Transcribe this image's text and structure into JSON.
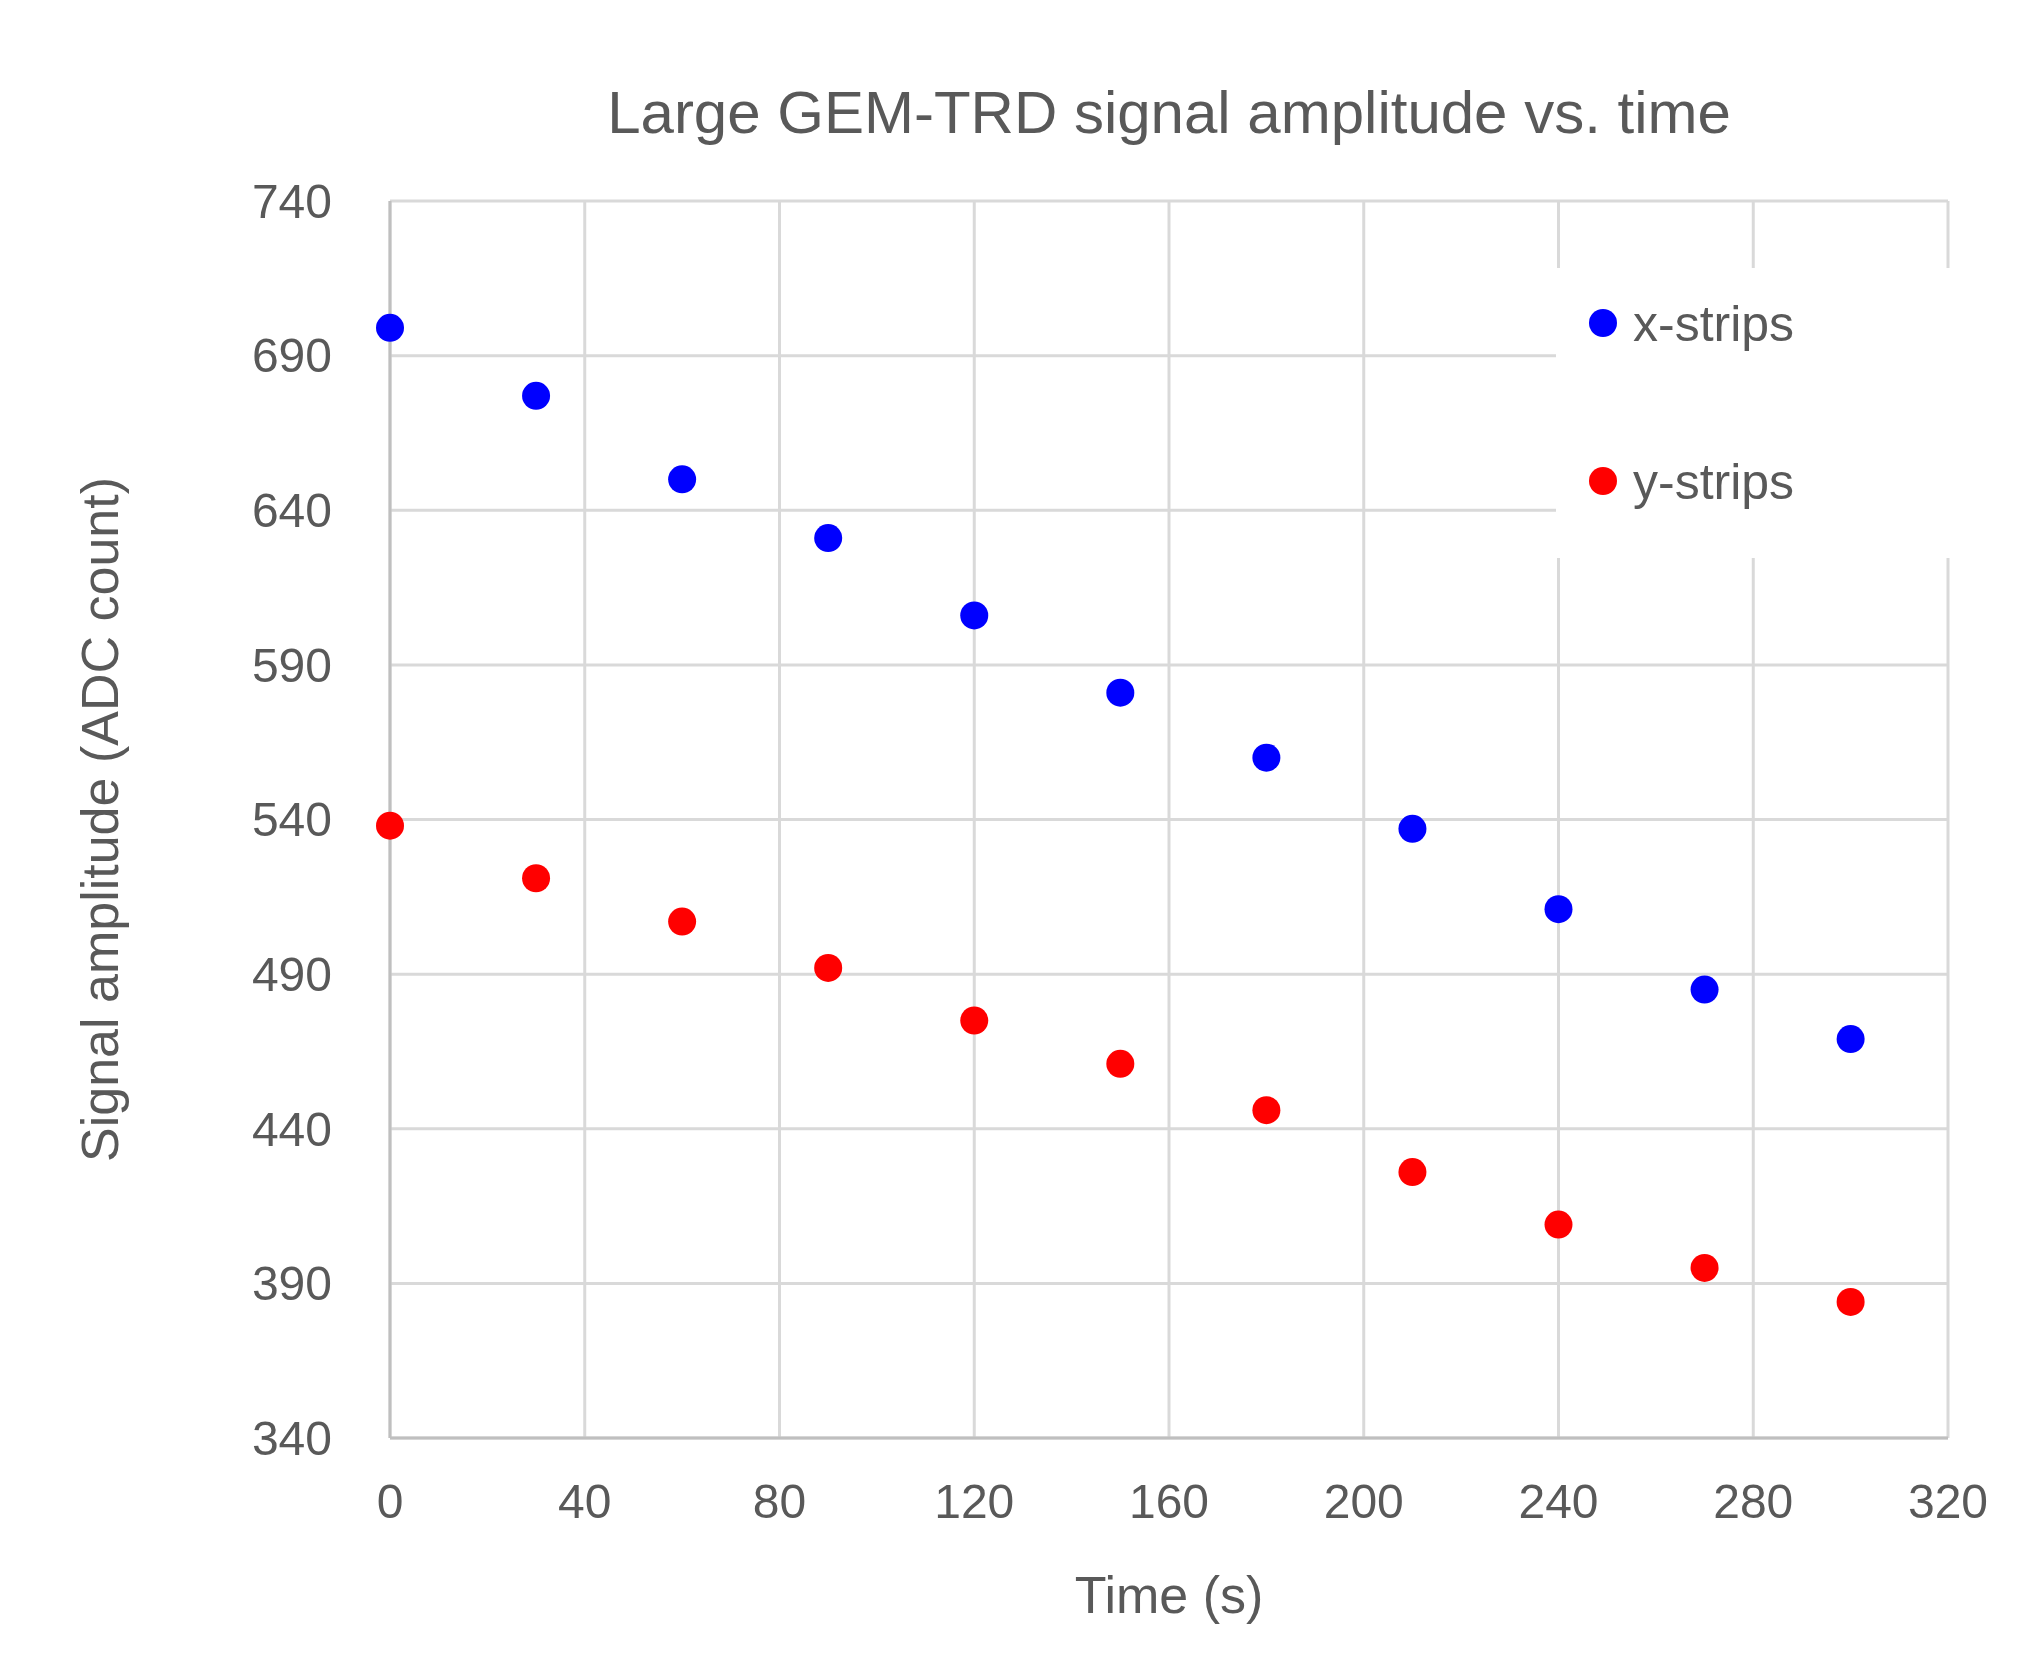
{
  "chart_data": {
    "type": "scatter",
    "title": "Large GEM-TRD signal amplitude vs. time",
    "xlabel": "Time (s)",
    "ylabel": "Signal amplitude (ADC count)",
    "x": [
      0,
      30,
      60,
      90,
      120,
      150,
      180,
      210,
      240,
      270,
      300
    ],
    "series": [
      {
        "name": "x-strips",
        "color": "#0000ff",
        "values": [
          699,
          677,
          650,
          631,
          606,
          581,
          560,
          537,
          511,
          485,
          469
        ]
      },
      {
        "name": "y-strips",
        "color": "#ff0000",
        "values": [
          538,
          521,
          507,
          492,
          475,
          461,
          446,
          426,
          409,
          395,
          384
        ]
      }
    ],
    "xlim": [
      0,
      320
    ],
    "xticks": [
      0,
      40,
      80,
      120,
      160,
      200,
      240,
      280,
      320
    ],
    "ylim": [
      340,
      740
    ],
    "yticks": [
      340,
      390,
      440,
      490,
      540,
      590,
      640,
      690,
      740
    ],
    "grid": true,
    "legend": "top right",
    "marker": "circle"
  }
}
